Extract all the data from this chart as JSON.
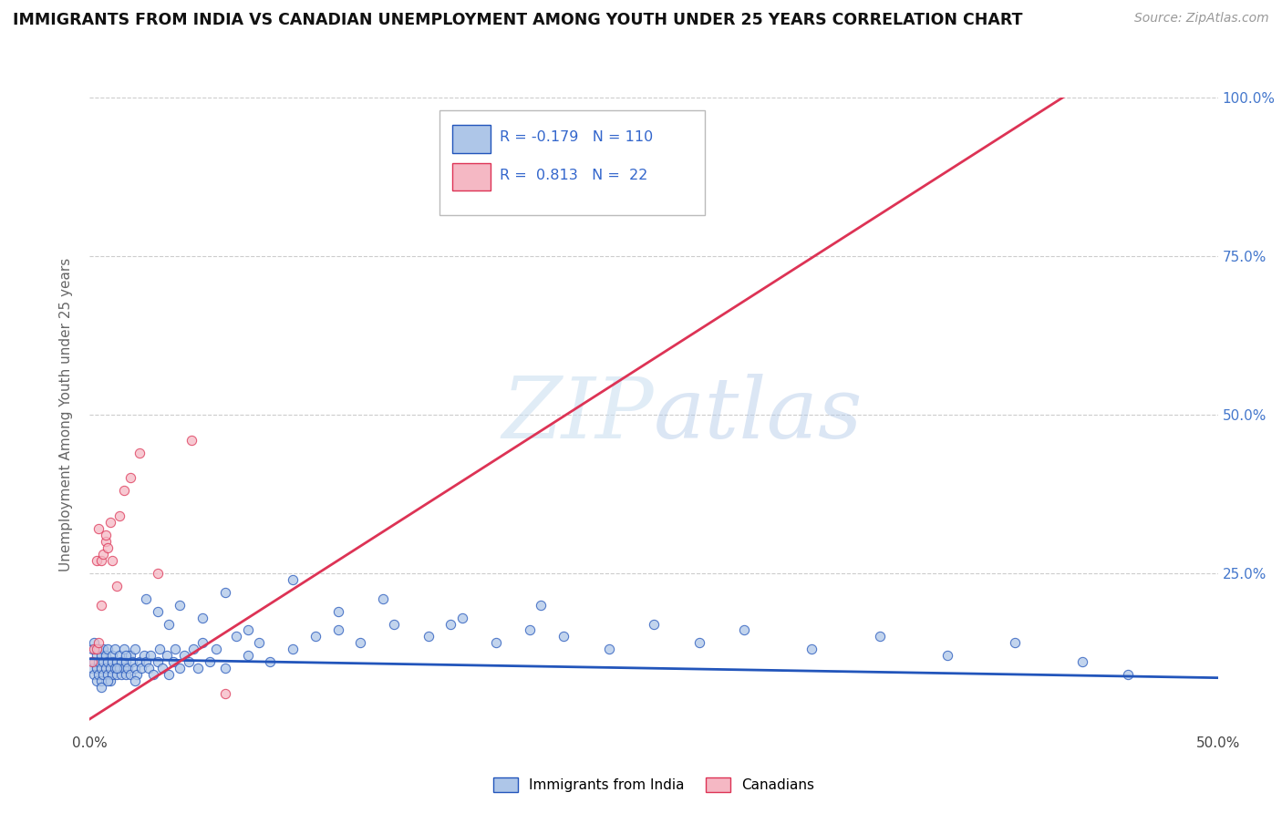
{
  "title": "IMMIGRANTS FROM INDIA VS CANADIAN UNEMPLOYMENT AMONG YOUTH UNDER 25 YEARS CORRELATION CHART",
  "source": "Source: ZipAtlas.com",
  "ylabel": "Unemployment Among Youth under 25 years",
  "blue_R": -0.179,
  "blue_N": 110,
  "pink_R": 0.813,
  "pink_N": 22,
  "blue_color": "#aec6e8",
  "pink_color": "#f5b8c4",
  "blue_line_color": "#2255bb",
  "pink_line_color": "#dd3355",
  "legend_label_blue": "Immigrants from India",
  "legend_label_pink": "Canadians",
  "watermark_zip": "ZIP",
  "watermark_atlas": "atlas",
  "background_color": "#ffffff",
  "grid_color": "#cccccc",
  "blue_scatter_x": [
    0.001,
    0.001,
    0.002,
    0.002,
    0.002,
    0.003,
    0.003,
    0.003,
    0.004,
    0.004,
    0.004,
    0.005,
    0.005,
    0.005,
    0.006,
    0.006,
    0.006,
    0.007,
    0.007,
    0.008,
    0.008,
    0.008,
    0.009,
    0.009,
    0.01,
    0.01,
    0.01,
    0.011,
    0.011,
    0.012,
    0.012,
    0.013,
    0.013,
    0.014,
    0.014,
    0.015,
    0.015,
    0.016,
    0.016,
    0.017,
    0.018,
    0.018,
    0.019,
    0.02,
    0.02,
    0.021,
    0.022,
    0.023,
    0.024,
    0.025,
    0.026,
    0.027,
    0.028,
    0.03,
    0.031,
    0.032,
    0.034,
    0.035,
    0.037,
    0.038,
    0.04,
    0.042,
    0.044,
    0.046,
    0.048,
    0.05,
    0.053,
    0.056,
    0.06,
    0.065,
    0.07,
    0.075,
    0.08,
    0.09,
    0.1,
    0.11,
    0.12,
    0.135,
    0.15,
    0.165,
    0.18,
    0.195,
    0.21,
    0.23,
    0.25,
    0.27,
    0.29,
    0.32,
    0.35,
    0.38,
    0.41,
    0.44,
    0.46,
    0.005,
    0.008,
    0.012,
    0.016,
    0.02,
    0.025,
    0.03,
    0.035,
    0.04,
    0.05,
    0.06,
    0.07,
    0.09,
    0.11,
    0.13,
    0.16,
    0.2
  ],
  "blue_scatter_y": [
    0.1,
    0.13,
    0.09,
    0.11,
    0.14,
    0.08,
    0.12,
    0.1,
    0.11,
    0.09,
    0.13,
    0.1,
    0.08,
    0.12,
    0.11,
    0.09,
    0.13,
    0.1,
    0.12,
    0.09,
    0.11,
    0.13,
    0.1,
    0.08,
    0.12,
    0.09,
    0.11,
    0.1,
    0.13,
    0.09,
    0.11,
    0.1,
    0.12,
    0.09,
    0.11,
    0.1,
    0.13,
    0.09,
    0.11,
    0.1,
    0.12,
    0.09,
    0.11,
    0.1,
    0.13,
    0.09,
    0.11,
    0.1,
    0.12,
    0.11,
    0.1,
    0.12,
    0.09,
    0.11,
    0.13,
    0.1,
    0.12,
    0.09,
    0.11,
    0.13,
    0.1,
    0.12,
    0.11,
    0.13,
    0.1,
    0.14,
    0.11,
    0.13,
    0.1,
    0.15,
    0.12,
    0.14,
    0.11,
    0.13,
    0.15,
    0.16,
    0.14,
    0.17,
    0.15,
    0.18,
    0.14,
    0.16,
    0.15,
    0.13,
    0.17,
    0.14,
    0.16,
    0.13,
    0.15,
    0.12,
    0.14,
    0.11,
    0.09,
    0.07,
    0.08,
    0.1,
    0.12,
    0.08,
    0.21,
    0.19,
    0.17,
    0.2,
    0.18,
    0.22,
    0.16,
    0.24,
    0.19,
    0.21,
    0.17,
    0.2
  ],
  "pink_scatter_x": [
    0.001,
    0.002,
    0.003,
    0.003,
    0.004,
    0.004,
    0.005,
    0.005,
    0.006,
    0.007,
    0.007,
    0.008,
    0.009,
    0.01,
    0.012,
    0.013,
    0.015,
    0.018,
    0.022,
    0.03,
    0.045,
    0.06
  ],
  "pink_scatter_y": [
    0.11,
    0.13,
    0.27,
    0.13,
    0.32,
    0.14,
    0.2,
    0.27,
    0.28,
    0.3,
    0.31,
    0.29,
    0.33,
    0.27,
    0.23,
    0.34,
    0.38,
    0.4,
    0.44,
    0.25,
    0.46,
    0.06
  ],
  "xlim": [
    0.0,
    0.5
  ],
  "ylim": [
    0.0,
    1.0
  ],
  "pink_trend_x": [
    0.0,
    0.44
  ],
  "pink_trend_y": [
    0.02,
    1.02
  ],
  "blue_trend_x": [
    0.0,
    0.5
  ],
  "blue_trend_y": [
    0.115,
    0.085
  ]
}
